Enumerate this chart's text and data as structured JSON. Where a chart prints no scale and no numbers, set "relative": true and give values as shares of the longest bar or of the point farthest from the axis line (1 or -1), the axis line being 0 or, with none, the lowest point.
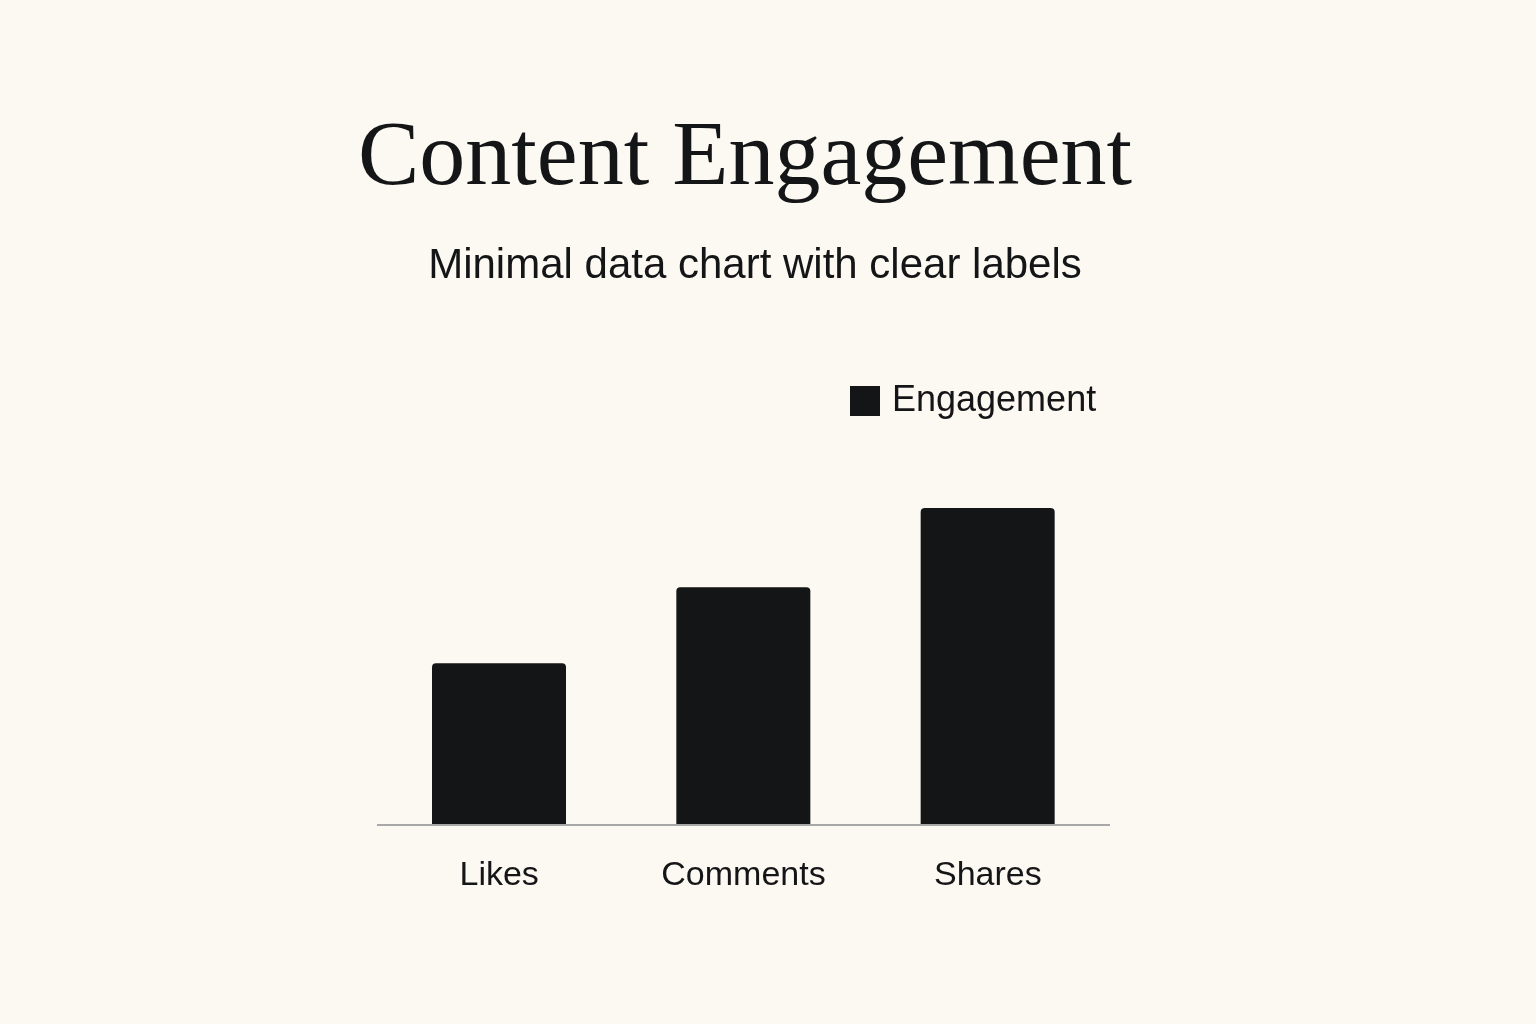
{
  "chart_data": {
    "type": "bar",
    "title": "Content Engagement",
    "subtitle": "Minimal data chart with clear labels",
    "categories": [
      "Likes",
      "Comments",
      "Shares"
    ],
    "series": [
      {
        "name": "Engagement",
        "color": "#141516",
        "values": [
          0.51,
          0.75,
          1
        ]
      }
    ],
    "relative": true,
    "legend": "top right",
    "grid": false
  }
}
